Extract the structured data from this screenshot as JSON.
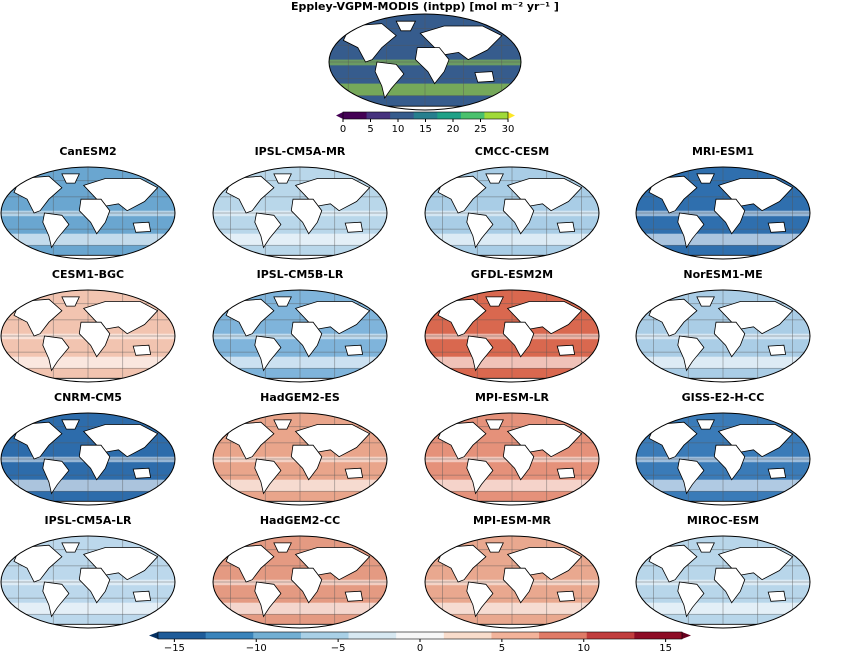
{
  "title": "Eppley-VGPM-MODIS (intpp) [mol m⁻² yr⁻¹ ]",
  "reference_colorbar": {
    "lim": [
      0,
      30
    ],
    "ticks": [
      0,
      5,
      10,
      15,
      20,
      25,
      30
    ],
    "colors": [
      "#440154",
      "#46327e",
      "#365c8d",
      "#277f8e",
      "#1fa187",
      "#4ac16d",
      "#a0da39",
      "#fde725"
    ]
  },
  "panels": [
    {
      "name": "CanESM2",
      "color": "#6aa6d0"
    },
    {
      "name": "IPSL-CM5A-MR",
      "color": "#b9d7ea"
    },
    {
      "name": "CMCC-CESM",
      "color": "#a9cde6"
    },
    {
      "name": "MRI-ESM1",
      "color": "#2f6fae"
    },
    {
      "name": "CESM1-BGC",
      "color": "#f2c4b0"
    },
    {
      "name": "IPSL-CM5B-LR",
      "color": "#7fb4db"
    },
    {
      "name": "GFDL-ESM2M",
      "color": "#d9684f"
    },
    {
      "name": "NorESM1-ME",
      "color": "#aacde6"
    },
    {
      "name": "CNRM-CM5",
      "color": "#2d6cab"
    },
    {
      "name": "HadGEM2-ES",
      "color": "#e9a58b"
    },
    {
      "name": "MPI-ESM-LR",
      "color": "#e5917a"
    },
    {
      "name": "GISS-E2-H-CC",
      "color": "#3a7bb8"
    },
    {
      "name": "IPSL-CM5A-LR",
      "color": "#bcd8ec"
    },
    {
      "name": "HadGEM2-CC",
      "color": "#e49a82"
    },
    {
      "name": "MPI-ESM-MR",
      "color": "#e9a88f"
    },
    {
      "name": "MIROC-ESM",
      "color": "#b8d6ea"
    }
  ],
  "difference_colorbar": {
    "lim": [
      -16,
      16
    ],
    "ticks": [
      {
        "value": -15,
        "label": "−15"
      },
      {
        "value": -10,
        "label": "−10"
      },
      {
        "value": -5,
        "label": "−5"
      },
      0,
      5,
      10,
      15
    ],
    "colors": [
      "#053061",
      "#1f5c99",
      "#3a84bb",
      "#72afd3",
      "#a9d0e6",
      "#d7e8f1",
      "#f7f7f7",
      "#f9dccb",
      "#f3b39a",
      "#e07b67",
      "#c13d3d",
      "#8e0c25",
      "#67001f"
    ]
  }
}
